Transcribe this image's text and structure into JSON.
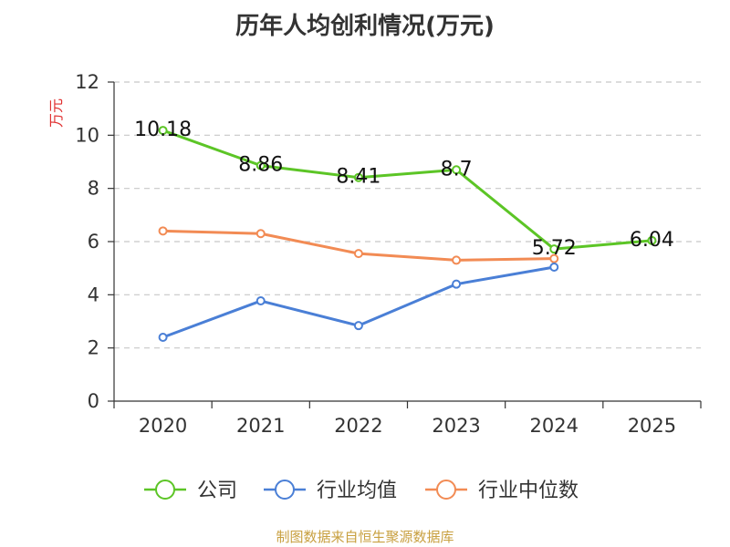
{
  "chart_data": {
    "type": "line",
    "title": "历年人均创利情况(万元)",
    "ylabel": "万元",
    "xlabel": "",
    "categories": [
      "2020",
      "2021",
      "2022",
      "2023",
      "2024",
      "2025"
    ],
    "ylim": [
      0,
      12
    ],
    "yticks": [
      0,
      2,
      4,
      6,
      8,
      10,
      12
    ],
    "grid": true,
    "legend_position": "bottom",
    "series": [
      {
        "name": "公司",
        "color": "#5cc526",
        "values": [
          10.18,
          8.86,
          8.41,
          8.7,
          5.72,
          6.04
        ],
        "labels": [
          "10.18",
          "8.86",
          "8.41",
          "8.7",
          "5.72",
          "6.04"
        ]
      },
      {
        "name": "行业均值",
        "color": "#4a7fd6",
        "values": [
          2.4,
          3.77,
          2.84,
          4.4,
          5.04,
          null
        ]
      },
      {
        "name": "行业中位数",
        "color": "#f28b54",
        "values": [
          6.4,
          6.3,
          5.55,
          5.3,
          5.36,
          null
        ]
      }
    ]
  },
  "source": "制图数据来自恒生聚源数据库"
}
